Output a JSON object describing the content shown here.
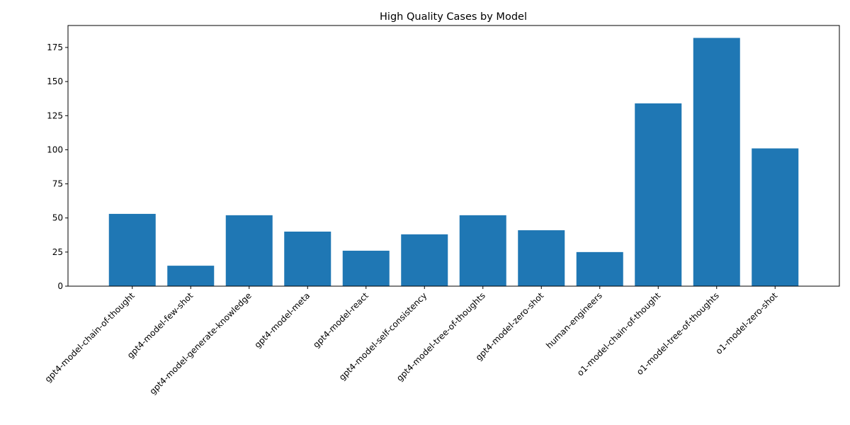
{
  "chart_data": {
    "type": "bar",
    "title": "High Quality Cases by Model",
    "xlabel": "",
    "ylabel": "",
    "categories": [
      "gpt4-model-chain-of-thought",
      "gpt4-model-few-shot",
      "gpt4-model-generate-knowledge",
      "gpt4-model-meta",
      "gpt4-model-react",
      "gpt4-model-self-consistency",
      "gpt4-model-tree-of-thoughts",
      "gpt4-model-zero-shot",
      "human-engineers",
      "o1-model-chain-of-thought",
      "o1-model-tree-of-thoughts",
      "o1-model-zero-shot"
    ],
    "values": [
      53,
      15,
      52,
      40,
      26,
      38,
      52,
      41,
      25,
      134,
      182,
      101
    ],
    "ylim": [
      0,
      191.1
    ],
    "yticks": [
      0,
      25,
      50,
      75,
      100,
      125,
      150,
      175
    ],
    "grid": false,
    "legend": "none",
    "bar_color": "#1f77b4"
  }
}
